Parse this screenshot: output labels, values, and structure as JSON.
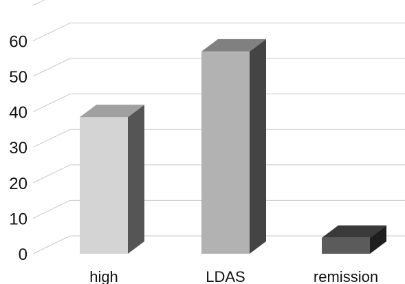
{
  "chart_data": {
    "type": "bar",
    "categories": [
      "high",
      "LDAS",
      "remission"
    ],
    "values": [
      38.5,
      57,
      4.5
    ],
    "title": "",
    "xlabel": "",
    "ylabel": "",
    "ylim": [
      0,
      70
    ],
    "yticks": [
      0,
      10,
      20,
      30,
      40,
      50,
      60
    ],
    "grid": true,
    "legend": "none",
    "style": "3d",
    "colors": {
      "high": {
        "front": "#d4d4d4",
        "top": "#a0a0a0",
        "side": "#555555"
      },
      "LDAS": {
        "front": "#b2b2b2",
        "top": "#808080",
        "side": "#444444"
      },
      "remission": {
        "front": "#5b5b5b",
        "top": "#3a3a3a",
        "side": "#1e1e1e"
      }
    },
    "gridColor": "#c8c8c8"
  }
}
